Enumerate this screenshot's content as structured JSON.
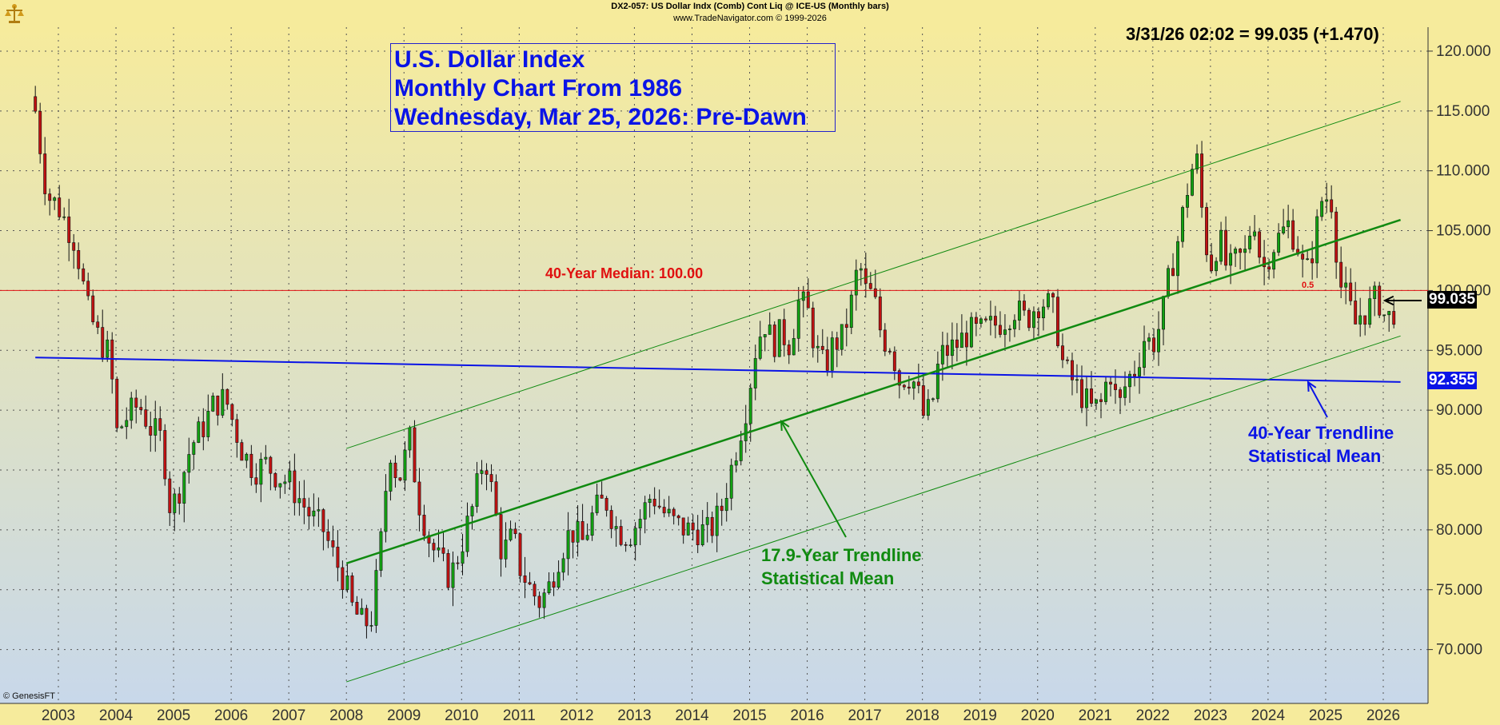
{
  "header": {
    "line1": "DX2-057:  US Dollar Indx (Comb) Cont Liq @ ICE-US  (Monthly bars)",
    "line2": "www.TradeNavigator.com © 1999-2026"
  },
  "quote": "3/31/26 02:02 = 99.035 (+1.470)",
  "title_lines": [
    "U.S. Dollar Index",
    "Monthly Chart From 1986",
    "Wednesday, Mar 25, 2026: Pre-Dawn"
  ],
  "copyright": "© GenesisFT",
  "annotations": {
    "median": "40-Year Median: 100.00",
    "green_line1": "17.9-Year Trendline",
    "green_line2": "Statistical Mean",
    "blue_line1": "40-Year Trendline",
    "blue_line2": "Statistical Mean",
    "fib": "0.5"
  },
  "price_tags": {
    "last": "99.035",
    "mean": "92.355"
  },
  "colors": {
    "bull": "#12a212",
    "bear": "#c01212",
    "median": "#e01010",
    "trend_green": "#108a10",
    "trend_blue": "#0a14e6",
    "bg_top": "#f6eb9c",
    "bg_bottom": "#c8d8ea"
  },
  "chart_data": {
    "type": "candlestick",
    "title": "U.S. Dollar Index",
    "ylim": [
      65.5,
      122.0
    ],
    "yticks": [
      "70.000",
      "75.000",
      "80.000",
      "85.000",
      "90.000",
      "95.000",
      "100.000",
      "105.000",
      "110.000",
      "115.000",
      "120.000"
    ],
    "ytick_values": [
      70,
      75,
      80,
      85,
      90,
      95,
      100,
      105,
      110,
      115,
      120
    ],
    "xticks": [
      "2003",
      "2004",
      "2005",
      "2006",
      "2007",
      "2008",
      "2009",
      "2010",
      "2011",
      "2012",
      "2013",
      "2014",
      "2015",
      "2016",
      "2017",
      "2018",
      "2019",
      "2020",
      "2021",
      "2022",
      "2023",
      "2024",
      "2025",
      "2026"
    ],
    "x_start": 2002.6,
    "x_end": 2026.55,
    "grid": true,
    "median_value": 100.0,
    "last_value": 99.035,
    "mean_value": 92.355,
    "trend_blue": {
      "x": [
        2002.6,
        2026.3
      ],
      "y": [
        94.4,
        92.355
      ]
    },
    "trend_green_mid": {
      "x": [
        2008.0,
        2026.3
      ],
      "y": [
        77.2,
        105.9
      ]
    },
    "trend_green_upper": {
      "x": [
        2008.0,
        2026.3
      ],
      "y": [
        86.8,
        115.8
      ]
    },
    "trend_green_lower": {
      "x": [
        2008.0,
        2026.3
      ],
      "y": [
        67.3,
        96.2
      ]
    },
    "closes": [
      [
        2002.6,
        115.0
      ],
      [
        2002.8,
        108.0
      ],
      [
        2003.0,
        107.0
      ],
      [
        2003.3,
        104.0
      ],
      [
        2003.5,
        98.5
      ],
      [
        2003.7,
        96.0
      ],
      [
        2003.9,
        94.5
      ],
      [
        2004.0,
        88.0
      ],
      [
        2004.2,
        89.5
      ],
      [
        2004.4,
        90.5
      ],
      [
        2004.6,
        88.5
      ],
      [
        2004.8,
        87.5
      ],
      [
        2004.95,
        81.5
      ],
      [
        2005.1,
        83.5
      ],
      [
        2005.3,
        87.0
      ],
      [
        2005.5,
        88.5
      ],
      [
        2005.7,
        90.5
      ],
      [
        2005.9,
        91.0
      ],
      [
        2006.0,
        89.5
      ],
      [
        2006.2,
        86.5
      ],
      [
        2006.4,
        85.0
      ],
      [
        2006.6,
        85.5
      ],
      [
        2006.8,
        84.5
      ],
      [
        2007.0,
        84.0
      ],
      [
        2007.2,
        82.5
      ],
      [
        2007.4,
        81.0
      ],
      [
        2007.6,
        80.0
      ],
      [
        2007.8,
        77.5
      ],
      [
        2007.95,
        76.0
      ],
      [
        2008.1,
        73.5
      ],
      [
        2008.3,
        72.0
      ],
      [
        2008.45,
        72.8
      ],
      [
        2008.6,
        79.0
      ],
      [
        2008.75,
        87.0
      ],
      [
        2008.9,
        84.0
      ],
      [
        2009.1,
        87.5
      ],
      [
        2009.25,
        82.5
      ],
      [
        2009.45,
        79.0
      ],
      [
        2009.6,
        77.5
      ],
      [
        2009.8,
        76.0
      ],
      [
        2009.95,
        78.0
      ],
      [
        2010.2,
        82.0
      ],
      [
        2010.4,
        86.5
      ],
      [
        2010.55,
        82.5
      ],
      [
        2010.7,
        78.0
      ],
      [
        2010.9,
        79.5
      ],
      [
        2011.0,
        77.0
      ],
      [
        2011.2,
        75.0
      ],
      [
        2011.35,
        74.0
      ],
      [
        2011.5,
        75.0
      ],
      [
        2011.7,
        78.0
      ],
      [
        2011.9,
        80.0
      ],
      [
        2012.1,
        79.0
      ],
      [
        2012.3,
        81.5
      ],
      [
        2012.5,
        82.5
      ],
      [
        2012.7,
        80.0
      ],
      [
        2012.9,
        79.5
      ],
      [
        2013.1,
        81.0
      ],
      [
        2013.3,
        83.0
      ],
      [
        2013.5,
        81.5
      ],
      [
        2013.7,
        80.5
      ],
      [
        2013.9,
        80.0
      ],
      [
        2014.1,
        80.0
      ],
      [
        2014.3,
        79.8
      ],
      [
        2014.5,
        81.5
      ],
      [
        2014.65,
        84.5
      ],
      [
        2014.8,
        87.5
      ],
      [
        2014.95,
        90.5
      ],
      [
        2015.1,
        95.0
      ],
      [
        2015.25,
        97.5
      ],
      [
        2015.4,
        95.5
      ],
      [
        2015.55,
        96.5
      ],
      [
        2015.7,
        95.5
      ],
      [
        2015.85,
        99.0
      ],
      [
        2016.0,
        98.5
      ],
      [
        2016.15,
        95.0
      ],
      [
        2016.3,
        93.5
      ],
      [
        2016.45,
        95.5
      ],
      [
        2016.6,
        96.0
      ],
      [
        2016.75,
        98.5
      ],
      [
        2016.9,
        102.5
      ],
      [
        2017.0,
        100.0
      ],
      [
        2017.15,
        99.5
      ],
      [
        2017.3,
        96.0
      ],
      [
        2017.45,
        95.5
      ],
      [
        2017.6,
        92.5
      ],
      [
        2017.75,
        93.0
      ],
      [
        2017.9,
        92.0
      ],
      [
        2018.0,
        89.5
      ],
      [
        2018.15,
        90.0
      ],
      [
        2018.3,
        94.5
      ],
      [
        2018.45,
        95.0
      ],
      [
        2018.6,
        95.5
      ],
      [
        2018.8,
        96.5
      ],
      [
        2019.0,
        96.5
      ],
      [
        2019.2,
        97.0
      ],
      [
        2019.4,
        97.5
      ],
      [
        2019.6,
        98.5
      ],
      [
        2019.8,
        97.5
      ],
      [
        2020.0,
        99.0
      ],
      [
        2020.15,
        99.0
      ],
      [
        2020.3,
        98.0
      ],
      [
        2020.45,
        93.5
      ],
      [
        2020.6,
        92.5
      ],
      [
        2020.8,
        91.0
      ],
      [
        2020.95,
        90.0
      ],
      [
        2021.1,
        90.5
      ],
      [
        2021.25,
        93.5
      ],
      [
        2021.4,
        90.0
      ],
      [
        2021.55,
        92.5
      ],
      [
        2021.7,
        93.5
      ],
      [
        2021.85,
        96.0
      ],
      [
        2022.0,
        95.5
      ],
      [
        2022.15,
        97.5
      ],
      [
        2022.3,
        101.5
      ],
      [
        2022.45,
        104.5
      ],
      [
        2022.6,
        108.5
      ],
      [
        2022.75,
        111.5
      ],
      [
        2022.9,
        104.5
      ],
      [
        2023.0,
        102.0
      ],
      [
        2023.15,
        104.5
      ],
      [
        2023.3,
        101.5
      ],
      [
        2023.45,
        102.5
      ],
      [
        2023.6,
        103.0
      ],
      [
        2023.75,
        106.5
      ],
      [
        2023.9,
        101.5
      ],
      [
        2024.05,
        103.5
      ],
      [
        2024.2,
        104.5
      ],
      [
        2024.35,
        105.5
      ],
      [
        2024.5,
        104.0
      ],
      [
        2024.65,
        101.0
      ],
      [
        2024.8,
        104.0
      ],
      [
        2024.95,
        108.0
      ],
      [
        2025.1,
        107.5
      ],
      [
        2025.25,
        100.5
      ],
      [
        2025.4,
        99.0
      ],
      [
        2025.5,
        97.0
      ],
      [
        2025.6,
        98.0
      ],
      [
        2025.75,
        98.5
      ],
      [
        2025.9,
        99.5
      ],
      [
        2026.05,
        97.5
      ],
      [
        2026.15,
        98.0
      ],
      [
        2026.25,
        99.035
      ]
    ]
  }
}
